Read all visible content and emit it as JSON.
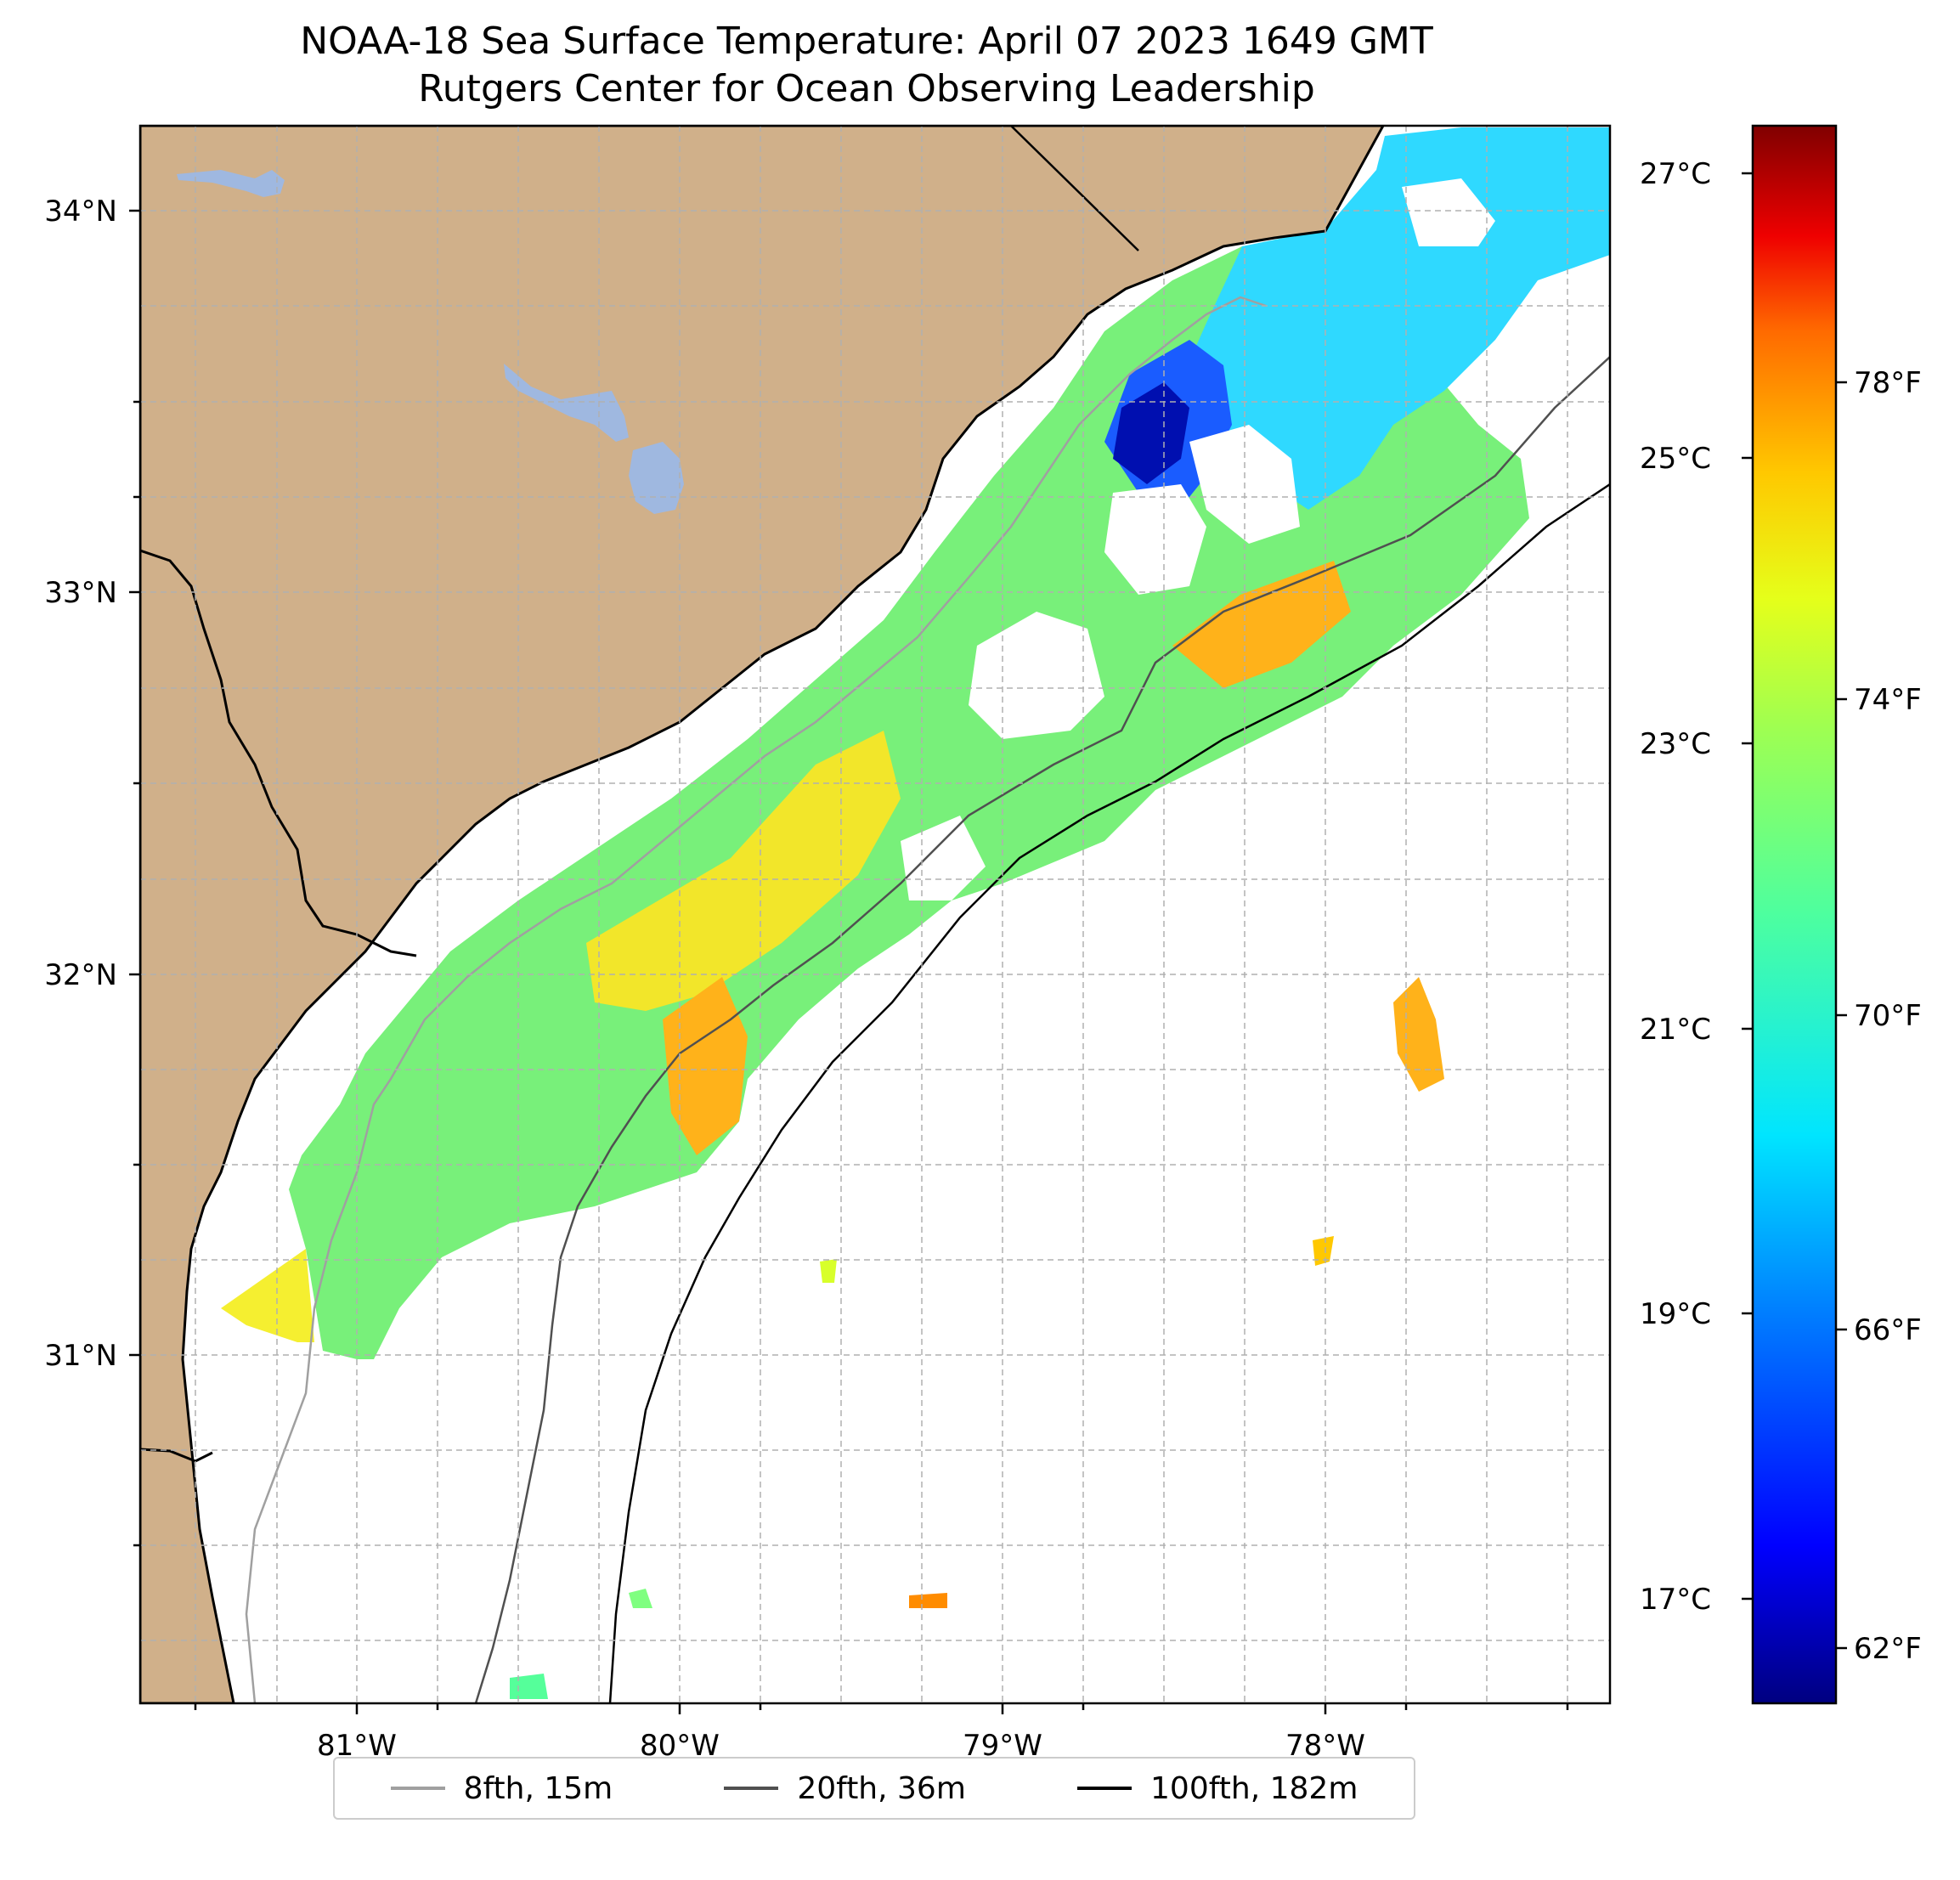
{
  "title": {
    "line1": "NOAA-18 Sea Surface Temperature: April 07 2023 1649 GMT",
    "line2": "Rutgers Center for Ocean Observing Leadership"
  },
  "map": {
    "lat_labels": [
      "34°N",
      "33°N",
      "32°N",
      "31°N"
    ],
    "lon_labels": [
      "81°W",
      "80°W",
      "79°W",
      "78°W"
    ],
    "lat_range": [
      30.1,
      34.22
    ],
    "lon_range": [
      -81.68,
      -77.12
    ],
    "land_color": "#d0b08a",
    "water_color": "#9fb8e0"
  },
  "colorbar": {
    "celsius_ticks": [
      "27°C",
      "25°C",
      "23°C",
      "21°C",
      "19°C",
      "17°C"
    ],
    "fahrenheit_ticks": [
      "78°F",
      "74°F",
      "70°F",
      "66°F",
      "62°F"
    ],
    "colormap": "jet",
    "colors": [
      "#000080",
      "#0000ff",
      "#0080ff",
      "#00e5ff",
      "#4dff9f",
      "#a0ff50",
      "#e5ff1a",
      "#ffc800",
      "#ff6a00",
      "#ef0000",
      "#800000"
    ]
  },
  "legend": {
    "items": [
      {
        "label": "8fth, 15m",
        "color": "#a0a0a0"
      },
      {
        "label": "20fth, 36m",
        "color": "#505050"
      },
      {
        "label": "100fth, 182m",
        "color": "#000000"
      }
    ]
  }
}
